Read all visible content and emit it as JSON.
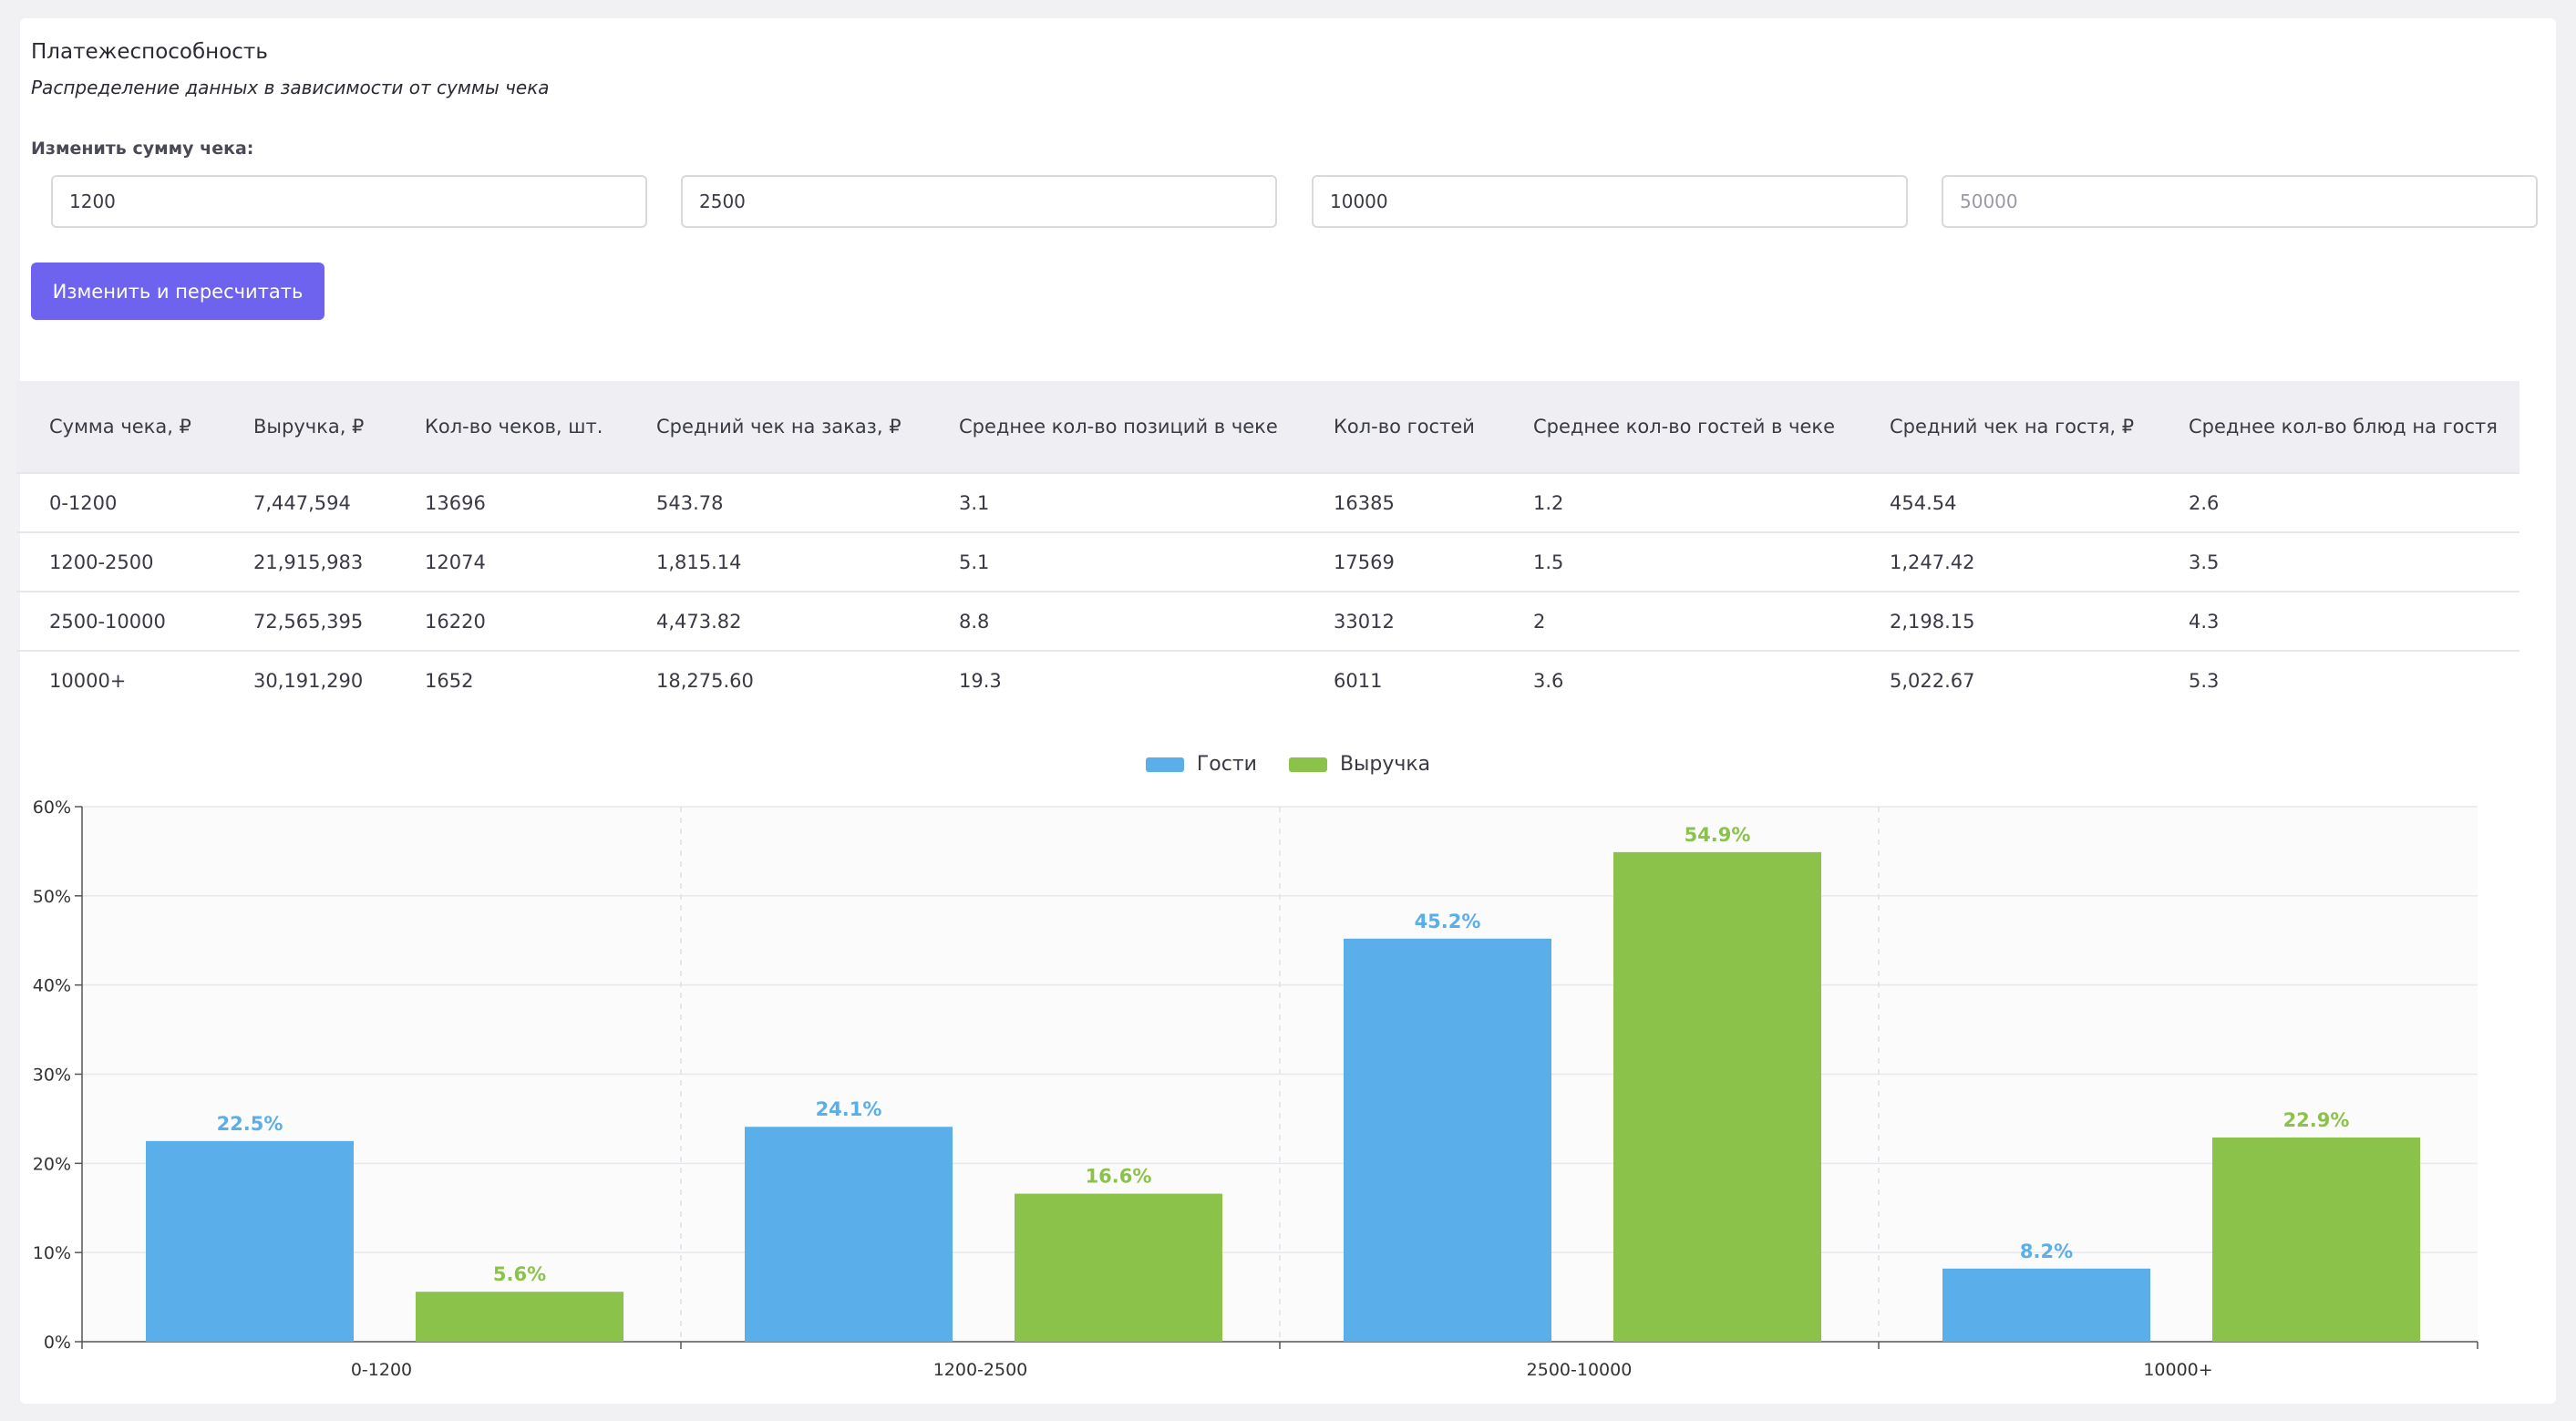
{
  "header": {
    "title": "Платежеспособность",
    "subtitle": "Распределение данных в зависимости от суммы чека"
  },
  "controls": {
    "label": "Изменить сумму чека:",
    "inputs": [
      {
        "value": "1200",
        "placeholder": ""
      },
      {
        "value": "2500",
        "placeholder": ""
      },
      {
        "value": "10000",
        "placeholder": ""
      },
      {
        "value": "",
        "placeholder": "50000"
      }
    ],
    "button_label": "Изменить и пересчитать"
  },
  "table": {
    "columns": [
      "Сумма чека, ₽",
      "Выручка, ₽",
      "Кол-во чеков, шт.",
      "Средний чек на заказ, ₽",
      "Среднее кол-во позиций в чеке",
      "Кол-во гостей",
      "Среднее кол-во гостей в чеке",
      "Средний чек на гостя, ₽",
      "Среднее кол-во блюд на гостя"
    ],
    "rows": [
      [
        "0-1200",
        "7,447,594",
        "13696",
        "543.78",
        "3.1",
        "16385",
        "1.2",
        "454.54",
        "2.6"
      ],
      [
        "1200-2500",
        "21,915,983",
        "12074",
        "1,815.14",
        "5.1",
        "17569",
        "1.5",
        "1,247.42",
        "3.5"
      ],
      [
        "2500-10000",
        "72,565,395",
        "16220",
        "4,473.82",
        "8.8",
        "33012",
        "2",
        "2,198.15",
        "4.3"
      ],
      [
        "10000+",
        "30,191,290",
        "1652",
        "18,275.60",
        "19.3",
        "6011",
        "3.6",
        "5,022.67",
        "5.3"
      ]
    ]
  },
  "chart_data": {
    "type": "bar",
    "categories": [
      "0-1200",
      "1200-2500",
      "2500-10000",
      "10000+"
    ],
    "series": [
      {
        "name": "Гости",
        "color": "#5aaeea",
        "values": [
          22.5,
          24.1,
          45.2,
          8.2
        ],
        "labels": [
          "22.5%",
          "24.1%",
          "45.2%",
          "8.2%"
        ]
      },
      {
        "name": "Выручка",
        "color": "#8bc34a",
        "values": [
          5.6,
          16.6,
          54.9,
          22.9
        ],
        "labels": [
          "5.6%",
          "16.6%",
          "54.9%",
          "22.9%"
        ]
      }
    ],
    "ylim": [
      0,
      60
    ],
    "yticks": [
      "0%",
      "10%",
      "20%",
      "30%",
      "40%",
      "50%",
      "60%"
    ],
    "grid": true,
    "legend_position": "top-center"
  }
}
